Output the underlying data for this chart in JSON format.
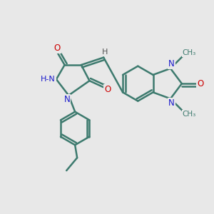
{
  "background_color": "#e8e8e8",
  "bond_color": "#3d7a6e",
  "bond_width": 1.8,
  "N_color": "#1a1acc",
  "O_color": "#cc0000",
  "H_color": "#555555",
  "figsize": [
    3.0,
    3.0
  ],
  "dpi": 100,
  "xlim": [
    0,
    10
  ],
  "ylim": [
    0,
    10
  ]
}
